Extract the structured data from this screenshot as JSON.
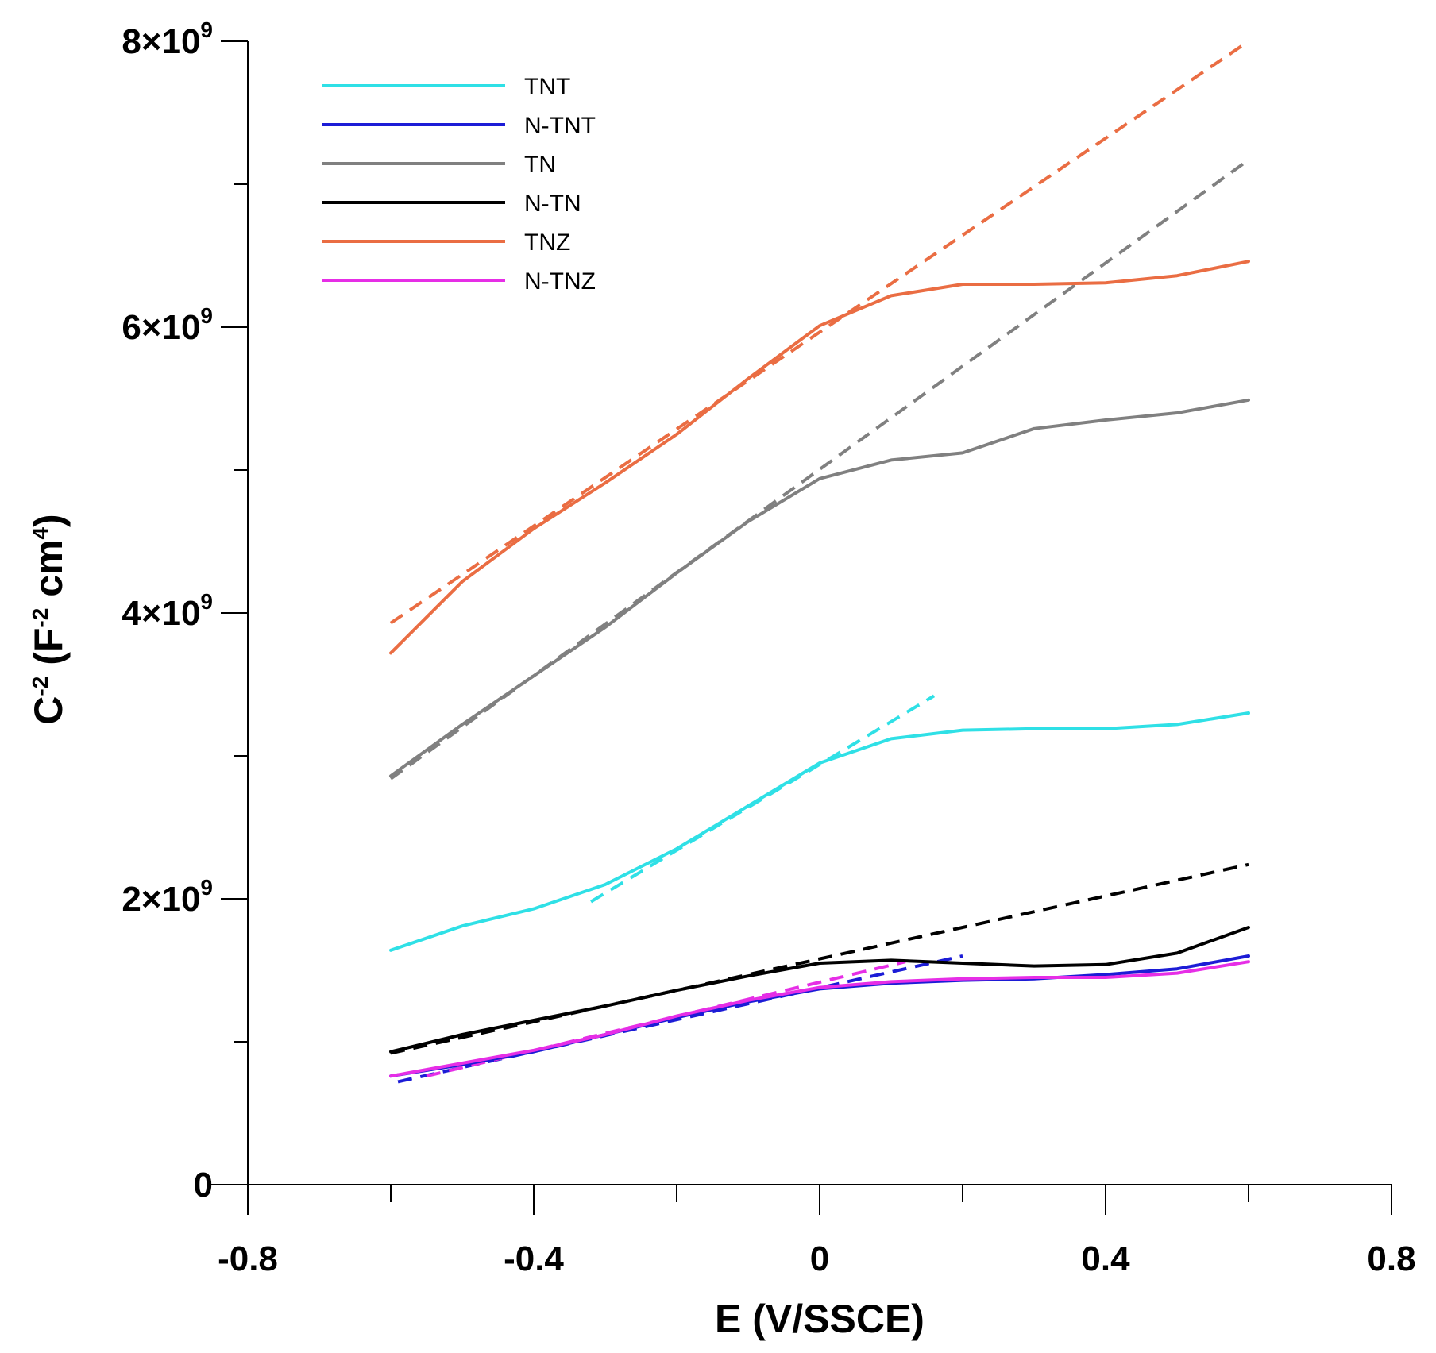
{
  "chart_data": {
    "type": "line",
    "title": "",
    "xlabel": "E (V/SSCE)",
    "ylabel_parts": {
      "base": "C",
      "base_sup": "-2",
      "open": " (F",
      "unit_sup": "-2",
      "mid": " cm",
      "cm_sup": "4",
      "close": ")"
    },
    "xlim": [
      -0.8,
      0.8
    ],
    "ylim": [
      0,
      8000000000
    ],
    "x_major_ticks": [
      -0.8,
      -0.4,
      0,
      0.4,
      0.8
    ],
    "x_minor_ticks": [
      -0.6,
      -0.2,
      0.2,
      0.6
    ],
    "x_tick_labels": [
      "-0.8",
      "-0.4",
      "0",
      "0.4",
      "0.8"
    ],
    "y_major_ticks": [
      0,
      2000000000,
      4000000000,
      6000000000,
      8000000000
    ],
    "y_minor_ticks": [
      1000000000,
      3000000000,
      5000000000,
      7000000000
    ],
    "y_tick_labels": [
      {
        "value": 0,
        "text": "0",
        "mant": "",
        "exp": ""
      },
      {
        "value": 2000000000,
        "text": "",
        "mant": "2×10",
        "exp": "9"
      },
      {
        "value": 4000000000,
        "text": "",
        "mant": "4×10",
        "exp": "9"
      },
      {
        "value": 6000000000,
        "text": "",
        "mant": "6×10",
        "exp": "9"
      },
      {
        "value": 8000000000,
        "text": "",
        "mant": "8×10",
        "exp": "9"
      }
    ],
    "grid": false,
    "legend_position": "top-left",
    "series": [
      {
        "name": "TNT",
        "color": "#2fe0e6",
        "x": [
          -0.6,
          -0.5,
          -0.4,
          -0.3,
          -0.2,
          -0.1,
          0,
          0.1,
          0.2,
          0.3,
          0.4,
          0.5,
          0.6
        ],
        "values": [
          1640000000,
          1810000000,
          1930000000,
          2100000000,
          2350000000,
          2650000000,
          2950000000,
          3120000000,
          3180000000,
          3190000000,
          3190000000,
          3220000000,
          3300000000
        ],
        "fit": {
          "x": [
            -0.32,
            0.16
          ],
          "y": [
            1980000000,
            3420000000
          ]
        }
      },
      {
        "name": "N-TNT",
        "color": "#1c1cd6",
        "x": [
          -0.6,
          -0.5,
          -0.4,
          -0.3,
          -0.2,
          -0.1,
          0,
          0.1,
          0.2,
          0.3,
          0.4,
          0.5,
          0.6
        ],
        "values": [
          760000000,
          840000000,
          930000000,
          1050000000,
          1170000000,
          1280000000,
          1370000000,
          1410000000,
          1430000000,
          1440000000,
          1470000000,
          1510000000,
          1600000000
        ],
        "fit": {
          "x": [
            -0.59,
            0.2
          ],
          "y": [
            720000000,
            1600000000
          ]
        }
      },
      {
        "name": "TN",
        "color": "#808080",
        "x": [
          -0.6,
          -0.5,
          -0.4,
          -0.3,
          -0.2,
          -0.1,
          0,
          0.1,
          0.2,
          0.3,
          0.4,
          0.5,
          0.6
        ],
        "values": [
          2860000000,
          3220000000,
          3560000000,
          3900000000,
          4280000000,
          4640000000,
          4940000000,
          5070000000,
          5120000000,
          5290000000,
          5350000000,
          5400000000,
          5490000000
        ],
        "fit": {
          "x": [
            -0.6,
            0.6
          ],
          "y": [
            2840000000,
            7170000000
          ]
        }
      },
      {
        "name": "N-TN",
        "color": "#000000",
        "x": [
          -0.6,
          -0.5,
          -0.4,
          -0.3,
          -0.2,
          -0.1,
          0,
          0.1,
          0.2,
          0.3,
          0.4,
          0.5,
          0.6
        ],
        "values": [
          930000000,
          1050000000,
          1150000000,
          1250000000,
          1360000000,
          1460000000,
          1550000000,
          1570000000,
          1550000000,
          1530000000,
          1540000000,
          1620000000,
          1800000000
        ],
        "fit": {
          "x": [
            -0.6,
            0.6
          ],
          "y": [
            920000000,
            2240000000
          ]
        }
      },
      {
        "name": "TNZ",
        "color": "#ea6d43",
        "x": [
          -0.6,
          -0.5,
          -0.4,
          -0.3,
          -0.2,
          -0.1,
          0,
          0.1,
          0.2,
          0.3,
          0.4,
          0.5,
          0.6
        ],
        "values": [
          3720000000,
          4220000000,
          4590000000,
          4910000000,
          5250000000,
          5640000000,
          6010000000,
          6220000000,
          6300000000,
          6300000000,
          6310000000,
          6360000000,
          6460000000
        ],
        "fit": {
          "x": [
            -0.6,
            0.6
          ],
          "y": [
            3930000000,
            8000000000
          ]
        }
      },
      {
        "name": "N-TNZ",
        "color": "#e62ee6",
        "x": [
          -0.6,
          -0.5,
          -0.4,
          -0.3,
          -0.2,
          -0.1,
          0,
          0.1,
          0.2,
          0.3,
          0.4,
          0.5,
          0.6
        ],
        "values": [
          760000000,
          850000000,
          940000000,
          1050000000,
          1180000000,
          1290000000,
          1380000000,
          1420000000,
          1440000000,
          1450000000,
          1450000000,
          1480000000,
          1560000000
        ],
        "fit": {
          "x": [
            -0.55,
            0.12
          ],
          "y": [
            760000000,
            1560000000
          ]
        }
      }
    ]
  }
}
